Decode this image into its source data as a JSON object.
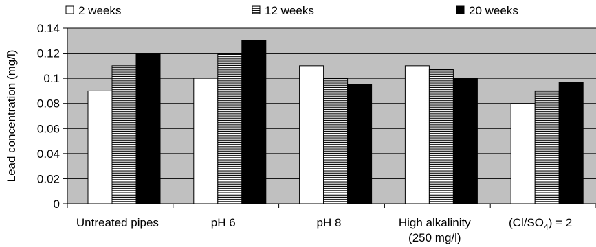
{
  "chart_data": {
    "type": "bar",
    "title": "",
    "xlabel": "",
    "ylabel": "Lead concentration (mg/l)",
    "ylim": [
      0,
      0.14
    ],
    "yticks": [
      "0",
      "0.02",
      "0.04",
      "0.06",
      "0.08",
      "0.1",
      "0.12",
      "0.14"
    ],
    "grid": true,
    "legend_position": "top",
    "categories": [
      [
        "Untreated pipes"
      ],
      [
        "pH 6"
      ],
      [
        "pH 8"
      ],
      [
        "High alkalinity",
        "(250 mg/l)"
      ],
      [
        "(Cl/SO",
        "4",
        ") = 2"
      ]
    ],
    "series": [
      {
        "name": "2 weeks",
        "pattern": "white",
        "values": [
          0.09,
          0.1,
          0.11,
          0.11,
          0.08
        ]
      },
      {
        "name": "12 weeks",
        "pattern": "horizontal-stripes",
        "values": [
          0.11,
          0.12,
          0.1,
          0.107,
          0.09
        ]
      },
      {
        "name": "20 weeks",
        "pattern": "black",
        "values": [
          0.12,
          0.13,
          0.095,
          0.1,
          0.097
        ]
      }
    ],
    "colors": {
      "plot_background": "#c0c0c0",
      "bar_outline": "#000000",
      "solid": "#000000",
      "white": "#ffffff"
    }
  }
}
